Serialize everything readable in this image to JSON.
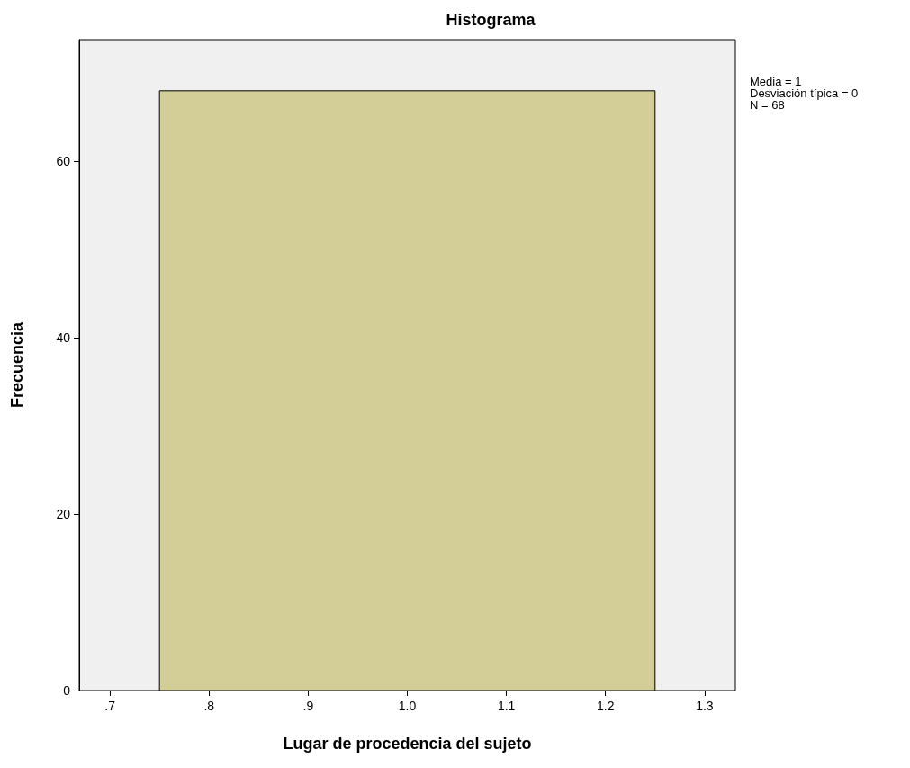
{
  "chart_data": {
    "type": "histogram",
    "title": "Histograma",
    "xlabel": "Lugar de procedencia del sujeto",
    "ylabel": "Frecuencia",
    "bins": [
      0.75,
      1.25
    ],
    "values": [
      68
    ],
    "color": "#d3ce97",
    "xlim": [
      0.669,
      1.331
    ],
    "xticks": [
      {
        "value": 0.7,
        "label": ".7"
      },
      {
        "value": 0.8,
        "label": ".8"
      },
      {
        "value": 0.9,
        "label": ".9"
      },
      {
        "value": 1.0,
        "label": "1.0"
      },
      {
        "value": 1.1,
        "label": "1.1"
      },
      {
        "value": 1.2,
        "label": "1.2"
      },
      {
        "value": 1.3,
        "label": "1.3"
      }
    ],
    "ylim": [
      0,
      73.8
    ],
    "yticks": [
      0,
      20,
      40,
      60
    ],
    "grid": false,
    "annotations": [
      "Media = 1",
      "Desviación típica = 0",
      "N = 68"
    ]
  }
}
